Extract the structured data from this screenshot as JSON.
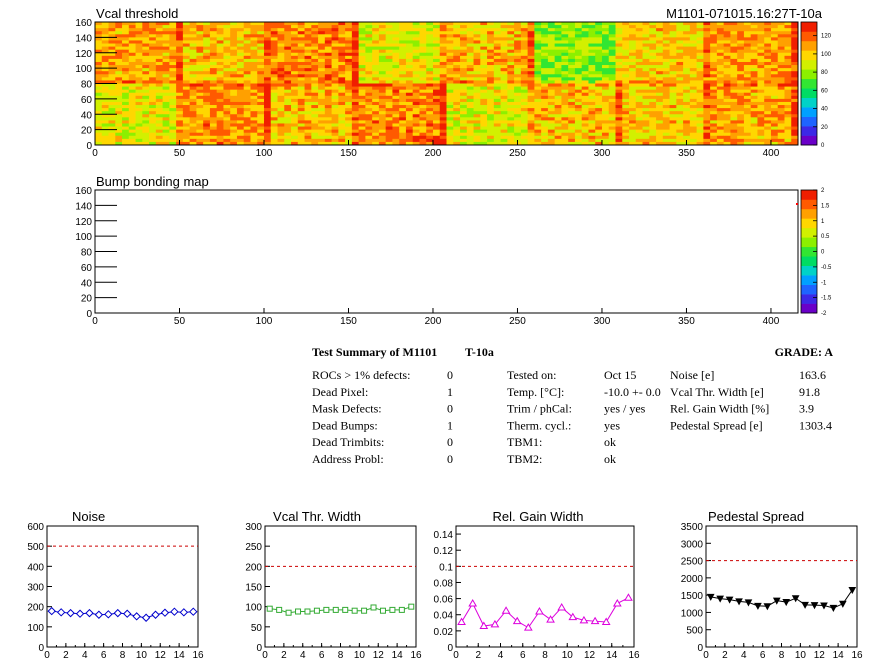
{
  "heatmaps": [
    {
      "title": "Vcal threshold",
      "id_label": "M1101-071015.16:27T-10a",
      "xlim": [
        0,
        416
      ],
      "ylim": [
        0,
        160
      ],
      "xticks": [
        0,
        50,
        100,
        150,
        200,
        250,
        300,
        350,
        400
      ],
      "yticks": [
        0,
        20,
        40,
        60,
        80,
        100,
        120,
        140,
        160
      ],
      "zticks": [
        0,
        20,
        40,
        60,
        80,
        100,
        120
      ],
      "zlim": [
        0,
        135
      ],
      "roc_means": [
        [
          108,
          102,
          112,
          92,
          104,
          78,
          100,
          108
        ],
        [
          92,
          110,
          102,
          112,
          92,
          102,
          100,
          106
        ]
      ],
      "roc_edge_high": true
    },
    {
      "title": "Bump bonding map",
      "xlim": [
        0,
        416
      ],
      "ylim": [
        0,
        160
      ],
      "xticks": [
        0,
        50,
        100,
        150,
        200,
        250,
        300,
        350,
        400
      ],
      "yticks": [
        0,
        20,
        40,
        60,
        80,
        100,
        120,
        140,
        160
      ],
      "zticks": [
        "-2",
        "-1.5",
        "-1",
        "-0.5",
        "0",
        "0.5",
        "1",
        "1.5",
        "2"
      ],
      "zlim": [
        -2,
        2
      ]
    }
  ],
  "summary": {
    "title": "Test Summary of M1101",
    "temp_label": "T-10a",
    "grade": "GRADE:  A",
    "col1": [
      {
        "label": "ROCs > 1% defects:",
        "value": "0"
      },
      {
        "label": "Dead Pixel:",
        "value": "1"
      },
      {
        "label": "Mask Defects:",
        "value": "0"
      },
      {
        "label": "Dead Bumps:",
        "value": "1"
      },
      {
        "label": "Dead Trimbits:",
        "value": "0"
      },
      {
        "label": "Address Probl:",
        "value": "0"
      }
    ],
    "col2": [
      {
        "label": "Tested on:",
        "value": "Oct 15"
      },
      {
        "label": "Temp. [°C]:",
        "value": "-10.0 +- 0.0"
      },
      {
        "label": "Trim / phCal:",
        "value": "yes / yes"
      },
      {
        "label": "Therm. cycl.:",
        "value": "yes"
      },
      {
        "label": "TBM1:",
        "value": "ok"
      },
      {
        "label": "TBM2:",
        "value": "ok"
      }
    ],
    "col3": [
      {
        "label": "Noise [e]",
        "value": "163.6"
      },
      {
        "label": "Vcal Thr. Width [e]",
        "value": "91.8"
      },
      {
        "label": "Rel. Gain Width [%]",
        "value": "3.9"
      },
      {
        "label": "Pedestal Spread [e]",
        "value": "1303.4"
      }
    ]
  },
  "chart_data": [
    {
      "type": "line",
      "title": "Noise",
      "x": [
        0.5,
        1.5,
        2.5,
        3.5,
        4.5,
        5.5,
        6.5,
        7.5,
        8.5,
        9.5,
        10.5,
        11.5,
        12.5,
        13.5,
        14.5,
        15.5
      ],
      "values": [
        178,
        172,
        168,
        165,
        168,
        160,
        162,
        168,
        165,
        152,
        145,
        160,
        170,
        175,
        172,
        175
      ],
      "xlim": [
        0,
        16
      ],
      "ylim": [
        0,
        600
      ],
      "xticks": [
        0,
        2,
        4,
        6,
        8,
        10,
        12,
        14,
        16
      ],
      "yticks": [
        0,
        100,
        200,
        300,
        400,
        500,
        600
      ],
      "threshold": 500,
      "color": "#0000cc",
      "marker": "diamond"
    },
    {
      "type": "line",
      "title": "Vcal Thr. Width",
      "x": [
        0.5,
        1.5,
        2.5,
        3.5,
        4.5,
        5.5,
        6.5,
        7.5,
        8.5,
        9.5,
        10.5,
        11.5,
        12.5,
        13.5,
        14.5,
        15.5
      ],
      "values": [
        95,
        92,
        85,
        88,
        88,
        90,
        92,
        92,
        92,
        90,
        90,
        98,
        90,
        92,
        92,
        100
      ],
      "xlim": [
        0,
        16
      ],
      "ylim": [
        0,
        300
      ],
      "xticks": [
        0,
        2,
        4,
        6,
        8,
        10,
        12,
        14,
        16
      ],
      "yticks": [
        0,
        50,
        100,
        150,
        200,
        250,
        300
      ],
      "threshold": 200,
      "color": "#33aa33",
      "marker": "square"
    },
    {
      "type": "line",
      "title": "Rel. Gain Width",
      "x": [
        0.5,
        1.5,
        2.5,
        3.5,
        4.5,
        5.5,
        6.5,
        7.5,
        8.5,
        9.5,
        10.5,
        11.5,
        12.5,
        13.5,
        14.5,
        15.5
      ],
      "values": [
        0.031,
        0.054,
        0.026,
        0.028,
        0.045,
        0.032,
        0.024,
        0.044,
        0.034,
        0.049,
        0.037,
        0.033,
        0.032,
        0.031,
        0.054,
        0.061
      ],
      "xlim": [
        0,
        16
      ],
      "ylim": [
        0,
        0.15
      ],
      "xticks": [
        0,
        2,
        4,
        6,
        8,
        10,
        12,
        14,
        16
      ],
      "yticks": [
        "0",
        "0.02",
        "0.04",
        "0.06",
        "0.08",
        "0.1",
        "0.12",
        "0.14"
      ],
      "threshold": 0.1,
      "color": "#dd00dd",
      "marker": "triangle"
    },
    {
      "type": "line",
      "title": "Pedestal Spread",
      "x": [
        0.5,
        1.5,
        2.5,
        3.5,
        4.5,
        5.5,
        6.5,
        7.5,
        8.5,
        9.5,
        10.5,
        11.5,
        12.5,
        13.5,
        14.5,
        15.5
      ],
      "values": [
        1450,
        1400,
        1370,
        1320,
        1290,
        1190,
        1180,
        1340,
        1300,
        1410,
        1220,
        1210,
        1200,
        1130,
        1250,
        1650
      ],
      "xlim": [
        0,
        16
      ],
      "ylim": [
        0,
        3500
      ],
      "xticks": [
        0,
        2,
        4,
        6,
        8,
        10,
        12,
        14,
        16
      ],
      "yticks": [
        0,
        500,
        1000,
        1500,
        2000,
        2500,
        3000,
        3500
      ],
      "threshold": 2500,
      "color": "#000000",
      "marker": "triangle-down"
    }
  ]
}
